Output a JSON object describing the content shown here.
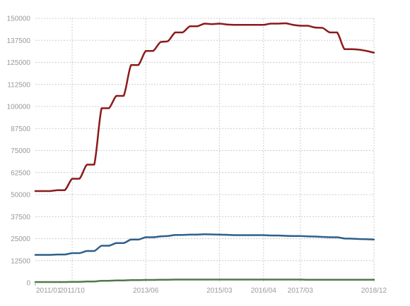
{
  "chart_data": {
    "type": "line",
    "title": "",
    "xlabel": "",
    "ylabel": "",
    "ylim": [
      0,
      150000
    ],
    "grid": true,
    "x_tick_labels": [
      "2011/01",
      "2011/10",
      "2013/06",
      "2015/03",
      "2016/04",
      "2017/03",
      "2018/12"
    ],
    "y_tick_labels": [
      "0",
      "12500",
      "25000",
      "37500",
      "50000",
      "62500",
      "75000",
      "87500",
      "100000",
      "112500",
      "125000",
      "137500",
      "150000"
    ],
    "x": [
      "2011/01",
      "2011/03",
      "2011/05",
      "2011/07",
      "2011/09",
      "2011/10",
      "2011/12",
      "2012/02",
      "2012/04",
      "2012/06",
      "2012/08",
      "2012/10",
      "2012/12",
      "2013/02",
      "2013/04",
      "2013/06",
      "2013/08",
      "2013/10",
      "2013/12",
      "2014/02",
      "2014/04",
      "2014/06",
      "2014/08",
      "2014/10",
      "2014/12",
      "2015/03",
      "2015/05",
      "2015/07",
      "2015/09",
      "2015/11",
      "2016/01",
      "2016/04",
      "2016/06",
      "2016/08",
      "2016/10",
      "2016/12",
      "2017/03",
      "2017/05",
      "2017/07",
      "2017/09",
      "2017/11",
      "2018/01",
      "2018/03",
      "2018/05",
      "2018/07",
      "2018/09",
      "2018/12"
    ],
    "series": [
      {
        "color": "#8b1a1a",
        "values": [
          52000,
          52000,
          52000,
          52500,
          52500,
          59000,
          59000,
          67000,
          67000,
          99000,
          99000,
          106000,
          106000,
          123500,
          123500,
          131500,
          131500,
          136500,
          137000,
          142000,
          142000,
          145500,
          145500,
          147000,
          146700,
          147000,
          146500,
          146300,
          146300,
          146300,
          146300,
          146300,
          147000,
          147000,
          147200,
          146300,
          145800,
          145800,
          144800,
          144600,
          142000,
          142000,
          132500,
          132500,
          132200,
          131500,
          130500
        ]
      },
      {
        "color": "#2e5f8a",
        "values": [
          15800,
          15800,
          15800,
          16000,
          16000,
          16800,
          16800,
          18000,
          18000,
          21000,
          21000,
          22500,
          22500,
          24500,
          24500,
          25800,
          25800,
          26300,
          26500,
          27100,
          27100,
          27300,
          27300,
          27500,
          27400,
          27300,
          27200,
          27000,
          27000,
          27000,
          27000,
          27000,
          26800,
          26800,
          26600,
          26500,
          26500,
          26300,
          26200,
          26000,
          25800,
          25800,
          25100,
          25000,
          24800,
          24700,
          24500
        ]
      },
      {
        "color": "#4f7a48",
        "values": [
          400,
          400,
          400,
          400,
          400,
          500,
          500,
          700,
          700,
          1100,
          1100,
          1300,
          1300,
          1500,
          1500,
          1600,
          1600,
          1700,
          1700,
          1800,
          1800,
          1800,
          1800,
          1800,
          1800,
          1800,
          1800,
          1800,
          1800,
          1800,
          1800,
          1800,
          1800,
          1800,
          1800,
          1800,
          1800,
          1700,
          1700,
          1700,
          1700,
          1700,
          1700,
          1700,
          1700,
          1700,
          1700
        ]
      }
    ],
    "colors": {
      "grid": "#cccccc",
      "tick_text": "#999999"
    }
  }
}
